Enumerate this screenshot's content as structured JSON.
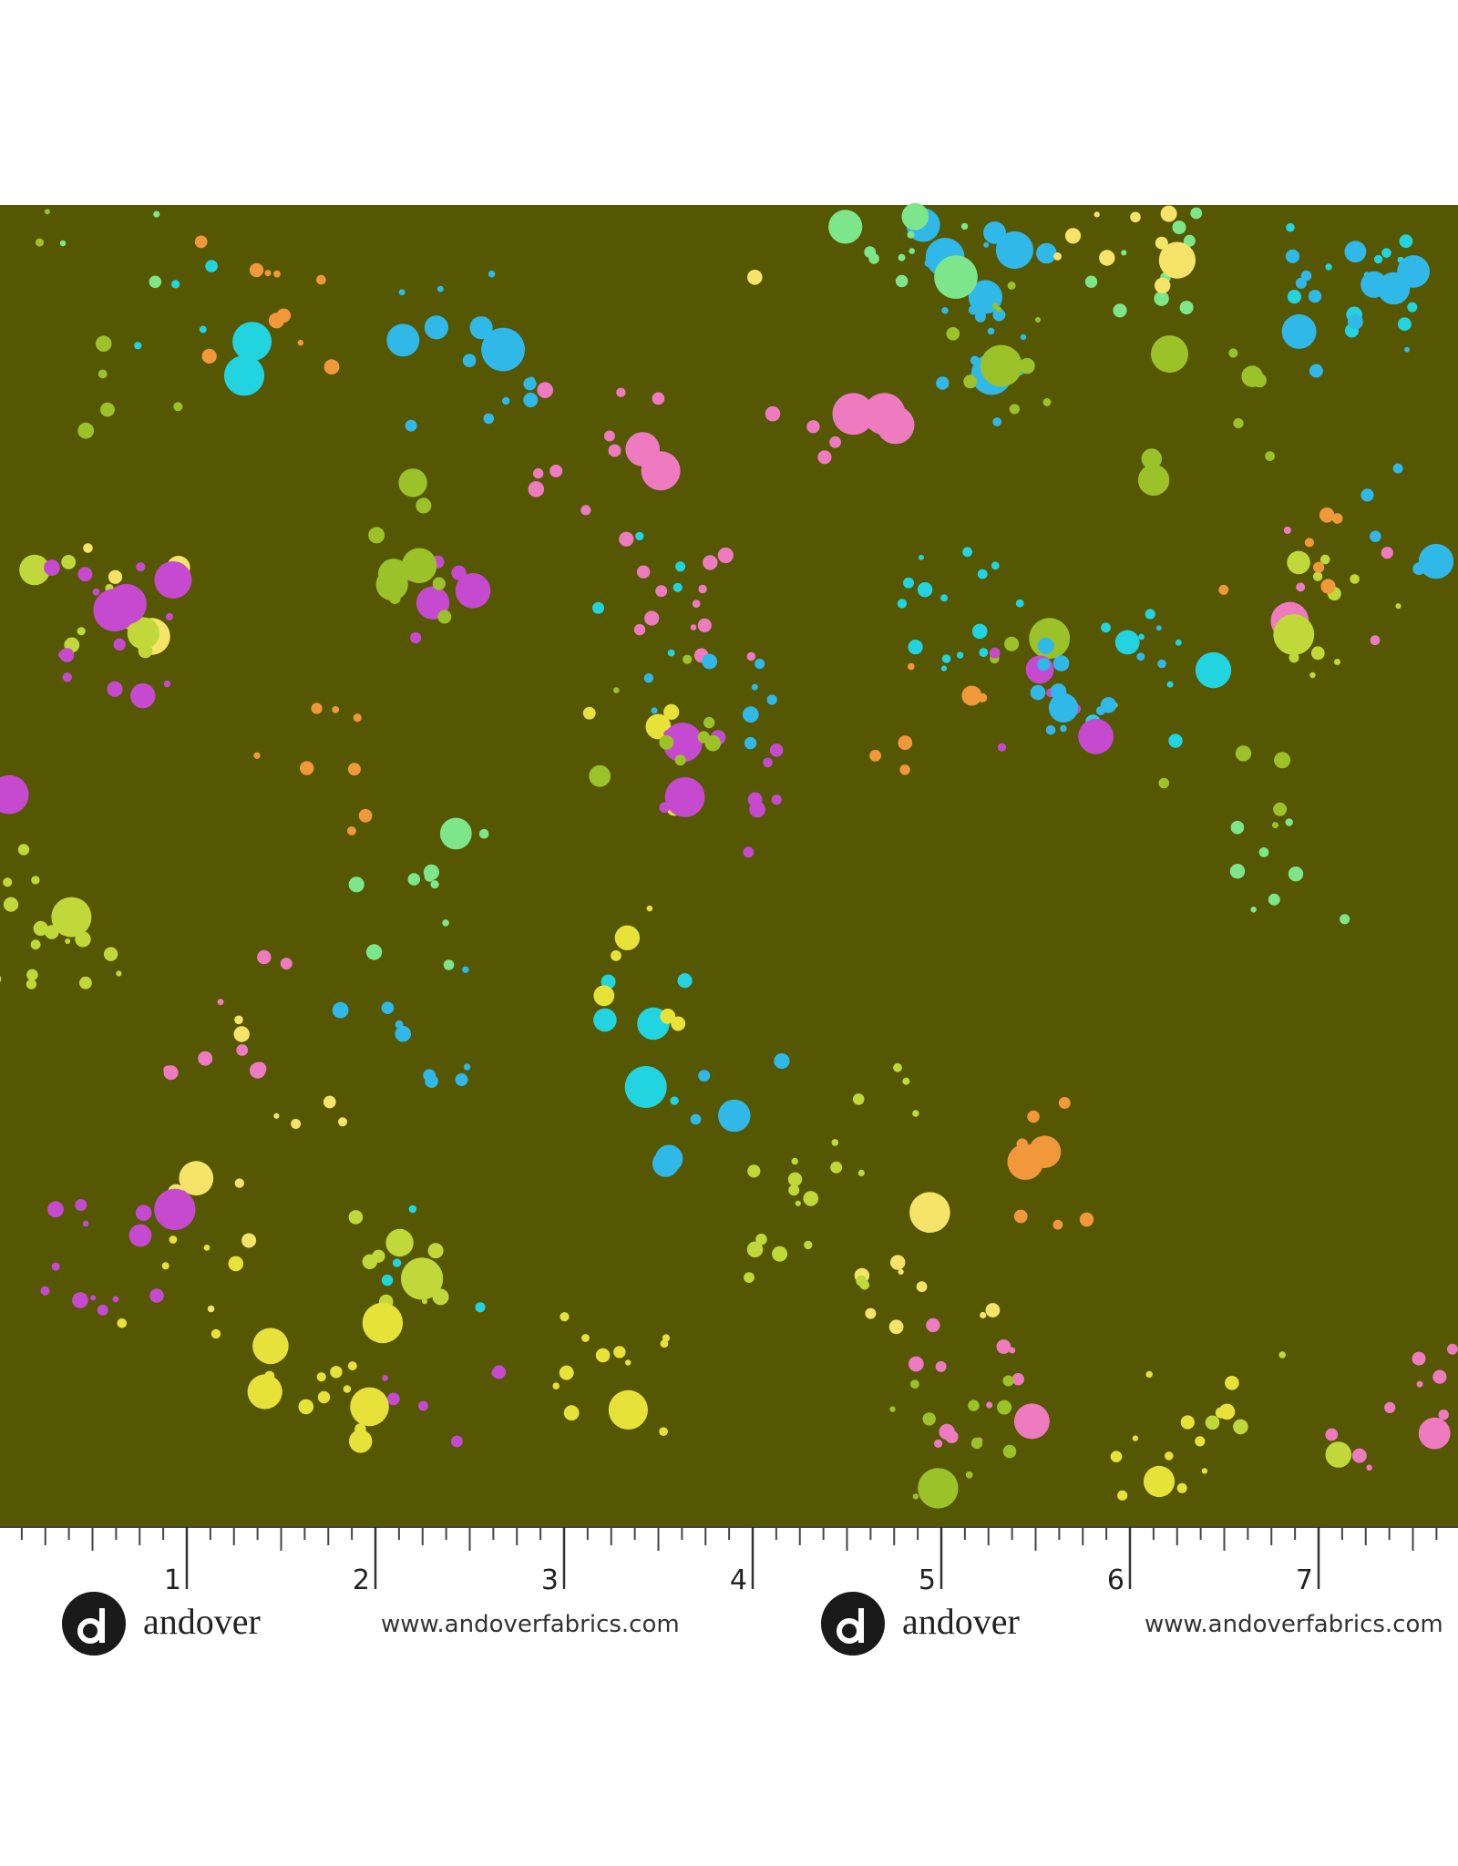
{
  "ruler": {
    "labels": [
      1,
      2,
      3,
      4,
      5,
      6,
      7
    ]
  },
  "brand": [
    {
      "name": "andover",
      "url": "www.andoverfabrics.com"
    },
    {
      "name": "andover",
      "url": "www.andoverfabrics.com"
    }
  ]
}
